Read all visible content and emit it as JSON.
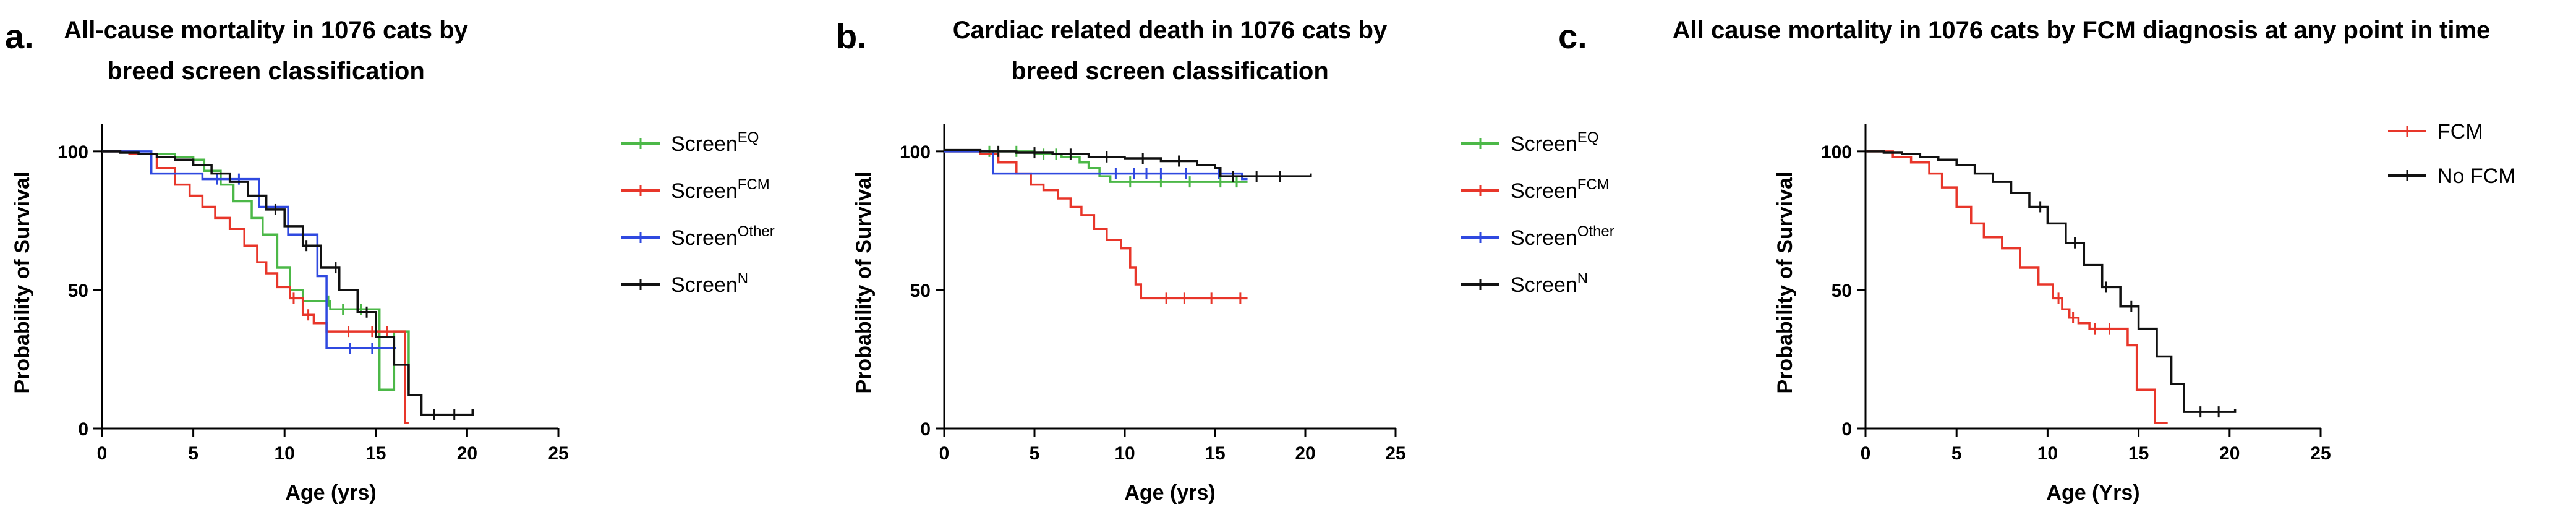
{
  "chart_data": [
    {
      "type": "line",
      "subtype": "kaplan-meier",
      "panel_label": "a.",
      "title_lines": [
        "All-cause mortality in 1076 cats by",
        "breed screen classification"
      ],
      "xlabel": "Age (yrs)",
      "ylabel": "Probability of Survival",
      "xlim": [
        0,
        25
      ],
      "ylim": [
        0,
        110
      ],
      "xticks": [
        0,
        5,
        10,
        15,
        20,
        25
      ],
      "yticks": [
        0,
        50,
        100
      ],
      "legend_position": "right",
      "series": [
        {
          "name": "Screen",
          "sup": "EQ",
          "color": "#4cb848",
          "points": [
            [
              0,
              100
            ],
            [
              2,
              99
            ],
            [
              4,
              98
            ],
            [
              5,
              97
            ],
            [
              5.6,
              93
            ],
            [
              6.5,
              88
            ],
            [
              7.2,
              82
            ],
            [
              8.2,
              76
            ],
            [
              8.8,
              70
            ],
            [
              9.6,
              58
            ],
            [
              10.3,
              50
            ],
            [
              11,
              46
            ],
            [
              12.5,
              43
            ],
            [
              14.5,
              43
            ],
            [
              15.2,
              28
            ],
            [
              15.2,
              14
            ],
            [
              16,
              14
            ],
            [
              16,
              35
            ],
            [
              16.8,
              35
            ],
            [
              16.8,
              14
            ]
          ],
          "censor_x": [
            12.4,
            13.2,
            14.2
          ]
        },
        {
          "name": "Screen",
          "sup": "FCM",
          "color": "#e8362a",
          "points": [
            [
              0,
              100
            ],
            [
              1.5,
              99
            ],
            [
              3,
              94
            ],
            [
              4,
              88
            ],
            [
              4.8,
              84
            ],
            [
              5.5,
              80
            ],
            [
              6.2,
              76
            ],
            [
              7,
              72
            ],
            [
              7.8,
              66
            ],
            [
              8.5,
              60
            ],
            [
              9,
              56
            ],
            [
              9.6,
              51
            ],
            [
              10.3,
              47
            ],
            [
              11,
              41
            ],
            [
              11.6,
              38
            ],
            [
              12.3,
              35
            ],
            [
              16.6,
              35
            ],
            [
              16.6,
              2
            ],
            [
              16.8,
              2
            ]
          ],
          "censor_x": [
            10.5,
            11.3,
            13.5,
            14.8,
            15.6
          ]
        },
        {
          "name": "Screen",
          "sup": "Other",
          "color": "#2f49e0",
          "points": [
            [
              0,
              100
            ],
            [
              2.7,
              100
            ],
            [
              2.7,
              92
            ],
            [
              5.5,
              92
            ],
            [
              5.5,
              90
            ],
            [
              8.6,
              90
            ],
            [
              8.6,
              80
            ],
            [
              10.2,
              80
            ],
            [
              10.2,
              70
            ],
            [
              11.8,
              70
            ],
            [
              11.8,
              55
            ],
            [
              12.3,
              55
            ],
            [
              12.3,
              29
            ],
            [
              16.1,
              29
            ]
          ],
          "censor_x": [
            6.3,
            7.5,
            13.6,
            14.8
          ]
        },
        {
          "name": "Screen",
          "sup": "N",
          "color": "#111111",
          "points": [
            [
              0,
              100
            ],
            [
              1,
              99.5
            ],
            [
              2,
              99
            ],
            [
              3,
              98
            ],
            [
              4,
              97
            ],
            [
              5,
              95
            ],
            [
              6,
              92
            ],
            [
              7,
              89
            ],
            [
              8,
              84
            ],
            [
              9,
              79
            ],
            [
              10,
              73
            ],
            [
              11,
              66
            ],
            [
              12,
              58
            ],
            [
              13,
              50
            ],
            [
              14,
              42
            ],
            [
              15,
              33
            ],
            [
              16,
              23
            ],
            [
              16.8,
              12
            ],
            [
              17.5,
              5
            ],
            [
              20.3,
              5
            ],
            [
              20.3,
              7
            ]
          ],
          "censor_x": [
            9.5,
            11.2,
            12.8,
            14.5,
            18.2,
            19.3
          ]
        }
      ]
    },
    {
      "type": "line",
      "subtype": "kaplan-meier",
      "panel_label": "b.",
      "title_lines": [
        "Cardiac related death in 1076 cats by",
        "breed screen classification"
      ],
      "xlabel": "Age (yrs)",
      "ylabel": "Probability of Survival",
      "xlim": [
        0,
        25
      ],
      "ylim": [
        0,
        110
      ],
      "xticks": [
        0,
        5,
        10,
        15,
        20,
        25
      ],
      "yticks": [
        0,
        50,
        100
      ],
      "legend_position": "right",
      "series": [
        {
          "name": "Screen",
          "sup": "EQ",
          "color": "#4cb848",
          "points": [
            [
              0,
              100
            ],
            [
              5,
              99
            ],
            [
              6.5,
              98
            ],
            [
              7.5,
              96
            ],
            [
              8,
              94
            ],
            [
              8.6,
              91
            ],
            [
              9.2,
              89
            ],
            [
              16.8,
              89
            ]
          ],
          "censor_x": [
            2.5,
            4,
            5.5,
            6.2,
            10.3,
            12,
            13.6,
            15.3,
            16.2
          ]
        },
        {
          "name": "Screen",
          "sup": "FCM",
          "color": "#e8362a",
          "points": [
            [
              0,
              100
            ],
            [
              2,
              99
            ],
            [
              3,
              96
            ],
            [
              4,
              92
            ],
            [
              4.8,
              88
            ],
            [
              5.5,
              86
            ],
            [
              6.3,
              83
            ],
            [
              7,
              80
            ],
            [
              7.6,
              77
            ],
            [
              8.3,
              72
            ],
            [
              9,
              68
            ],
            [
              9.8,
              65
            ],
            [
              10.3,
              58
            ],
            [
              10.6,
              52
            ],
            [
              10.9,
              47
            ],
            [
              16.8,
              47
            ]
          ],
          "censor_x": [
            12.3,
            13.3,
            14.8,
            16.4
          ]
        },
        {
          "name": "Screen",
          "sup": "Other",
          "color": "#2f49e0",
          "points": [
            [
              0,
              100
            ],
            [
              2.7,
              100
            ],
            [
              2.7,
              92
            ],
            [
              16.5,
              92
            ],
            [
              16.5,
              90
            ],
            [
              16.8,
              90
            ]
          ],
          "censor_x": [
            9.5,
            10.5,
            11.2,
            12,
            13.4,
            15.2
          ]
        },
        {
          "name": "Screen",
          "sup": "N",
          "color": "#111111",
          "points": [
            [
              0,
              100.5
            ],
            [
              2,
              100
            ],
            [
              4,
              99.5
            ],
            [
              6,
              99
            ],
            [
              8,
              98
            ],
            [
              10,
              97.5
            ],
            [
              12,
              96.5
            ],
            [
              14,
              95
            ],
            [
              15,
              94
            ],
            [
              15.3,
              91
            ],
            [
              20.3,
              91
            ],
            [
              20.3,
              92
            ]
          ],
          "censor_x": [
            3,
            5,
            7,
            9,
            11,
            13,
            16,
            17.3,
            18.6
          ]
        }
      ]
    },
    {
      "type": "line",
      "subtype": "kaplan-meier",
      "panel_label": "c.",
      "title_lines": [
        "All cause mortality in 1076 cats by FCM diagnosis at any point in time"
      ],
      "xlabel": "Age (Yrs)",
      "ylabel": "Probability of Survival",
      "xlim": [
        0,
        25
      ],
      "ylim": [
        0,
        110
      ],
      "xticks": [
        0,
        5,
        10,
        15,
        20,
        25
      ],
      "yticks": [
        0,
        50,
        100
      ],
      "legend_position": "top-right",
      "series": [
        {
          "name": "FCM",
          "sup": "",
          "color": "#e8362a",
          "points": [
            [
              0,
              100
            ],
            [
              1.5,
              98
            ],
            [
              2.5,
              96
            ],
            [
              3.5,
              92
            ],
            [
              4.2,
              87
            ],
            [
              5,
              80
            ],
            [
              5.8,
              74
            ],
            [
              6.5,
              69
            ],
            [
              7.5,
              65
            ],
            [
              8.5,
              58
            ],
            [
              9.5,
              52
            ],
            [
              10.3,
              47
            ],
            [
              10.8,
              43
            ],
            [
              11.2,
              40
            ],
            [
              11.7,
              38
            ],
            [
              12.3,
              36
            ],
            [
              14.4,
              36
            ],
            [
              14.4,
              30
            ],
            [
              14.9,
              30
            ],
            [
              14.9,
              14
            ],
            [
              15.9,
              14
            ],
            [
              15.9,
              2
            ],
            [
              16.6,
              2
            ]
          ],
          "censor_x": [
            10.6,
            11.4,
            12.6,
            13.4
          ]
        },
        {
          "name": "No FCM",
          "sup": "",
          "color": "#111111",
          "points": [
            [
              0,
              100
            ],
            [
              1,
              99.5
            ],
            [
              2,
              99
            ],
            [
              3,
              98
            ],
            [
              4,
              97
            ],
            [
              5,
              95
            ],
            [
              6,
              92
            ],
            [
              7,
              89
            ],
            [
              8,
              85
            ],
            [
              9,
              80
            ],
            [
              10,
              74
            ],
            [
              11,
              67
            ],
            [
              12,
              59
            ],
            [
              13,
              51
            ],
            [
              14,
              44
            ],
            [
              15,
              36
            ],
            [
              16,
              26
            ],
            [
              16.8,
              16
            ],
            [
              17.5,
              6
            ],
            [
              20.3,
              6
            ],
            [
              20.3,
              7
            ]
          ],
          "censor_x": [
            9.6,
            11.5,
            13.2,
            14.6,
            18.4,
            19.4
          ]
        }
      ]
    }
  ]
}
